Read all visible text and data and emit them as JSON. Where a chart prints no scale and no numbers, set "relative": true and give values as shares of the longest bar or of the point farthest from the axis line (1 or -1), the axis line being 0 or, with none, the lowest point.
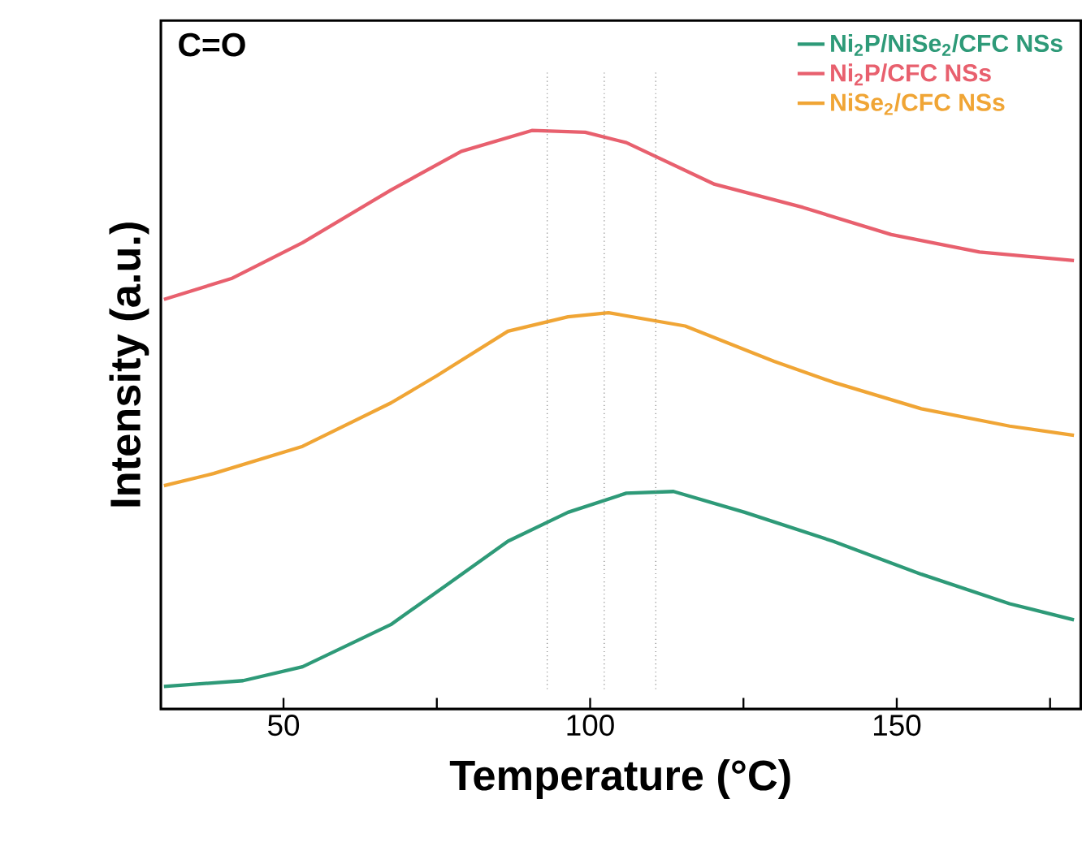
{
  "chart_data": {
    "type": "line",
    "relative": true,
    "xlabel": "Temperature (°C)",
    "ylabel": "Intensity (a.u.)",
    "annotations": [
      "C=O"
    ],
    "legend": "top right",
    "xlim": [
      30,
      180
    ],
    "xticks": [
      50,
      {
        "value": 75,
        "label": null
      },
      100,
      {
        "value": 125,
        "label": null
      },
      150,
      {
        "value": 175,
        "label": null
      }
    ],
    "ref_lines": [
      {
        "axis": "x",
        "value": 93.0,
        "color": "#808080",
        "line_style": "dotted"
      },
      {
        "axis": "x",
        "value": 102.3,
        "color": "#808080",
        "line_style": "dotted"
      },
      {
        "axis": "x",
        "value": 110.7,
        "color": "#808080",
        "line_style": "dotted"
      }
    ],
    "series": [
      {
        "name": "Ni$_{2}$P/NiSe$_{2}$/CFC NSs",
        "color": "#2e9a78",
        "x": [
          30.5,
          43.4,
          53.1,
          67.5,
          77.1,
          86.6,
          96.4,
          105.9,
          113.6,
          125.2,
          139.6,
          154,
          168.4,
          178.9
        ],
        "values": [
          0.039,
          0.049,
          0.073,
          0.146,
          0.218,
          0.29,
          0.34,
          0.373,
          0.376,
          0.34,
          0.29,
          0.233,
          0.182,
          0.154
        ]
      },
      {
        "name": "Ni$_{2}$P/CFC NSs",
        "color": "#e8606e",
        "x": [
          30.5,
          41.5,
          53.1,
          67.5,
          79.0,
          90.5,
          99.2,
          105.9,
          120.3,
          134.7,
          149.1,
          163.5,
          178.9
        ],
        "values": [
          0.708,
          0.744,
          0.806,
          0.897,
          0.964,
          1.0,
          0.997,
          0.979,
          0.907,
          0.867,
          0.82,
          0.79,
          0.775
        ]
      },
      {
        "name": "NiSe$_{2}$/CFC NSs",
        "color": "#f0a535",
        "x": [
          30.5,
          38.6,
          53.1,
          67.5,
          75,
          77.1,
          86.6,
          96.4,
          103,
          115.5,
          130,
          139.6,
          154,
          168.4,
          178.9
        ],
        "values": [
          0.386,
          0.407,
          0.454,
          0.529,
          0.576,
          0.59,
          0.653,
          0.678,
          0.685,
          0.662,
          0.601,
          0.565,
          0.519,
          0.489,
          0.473
        ]
      }
    ]
  }
}
